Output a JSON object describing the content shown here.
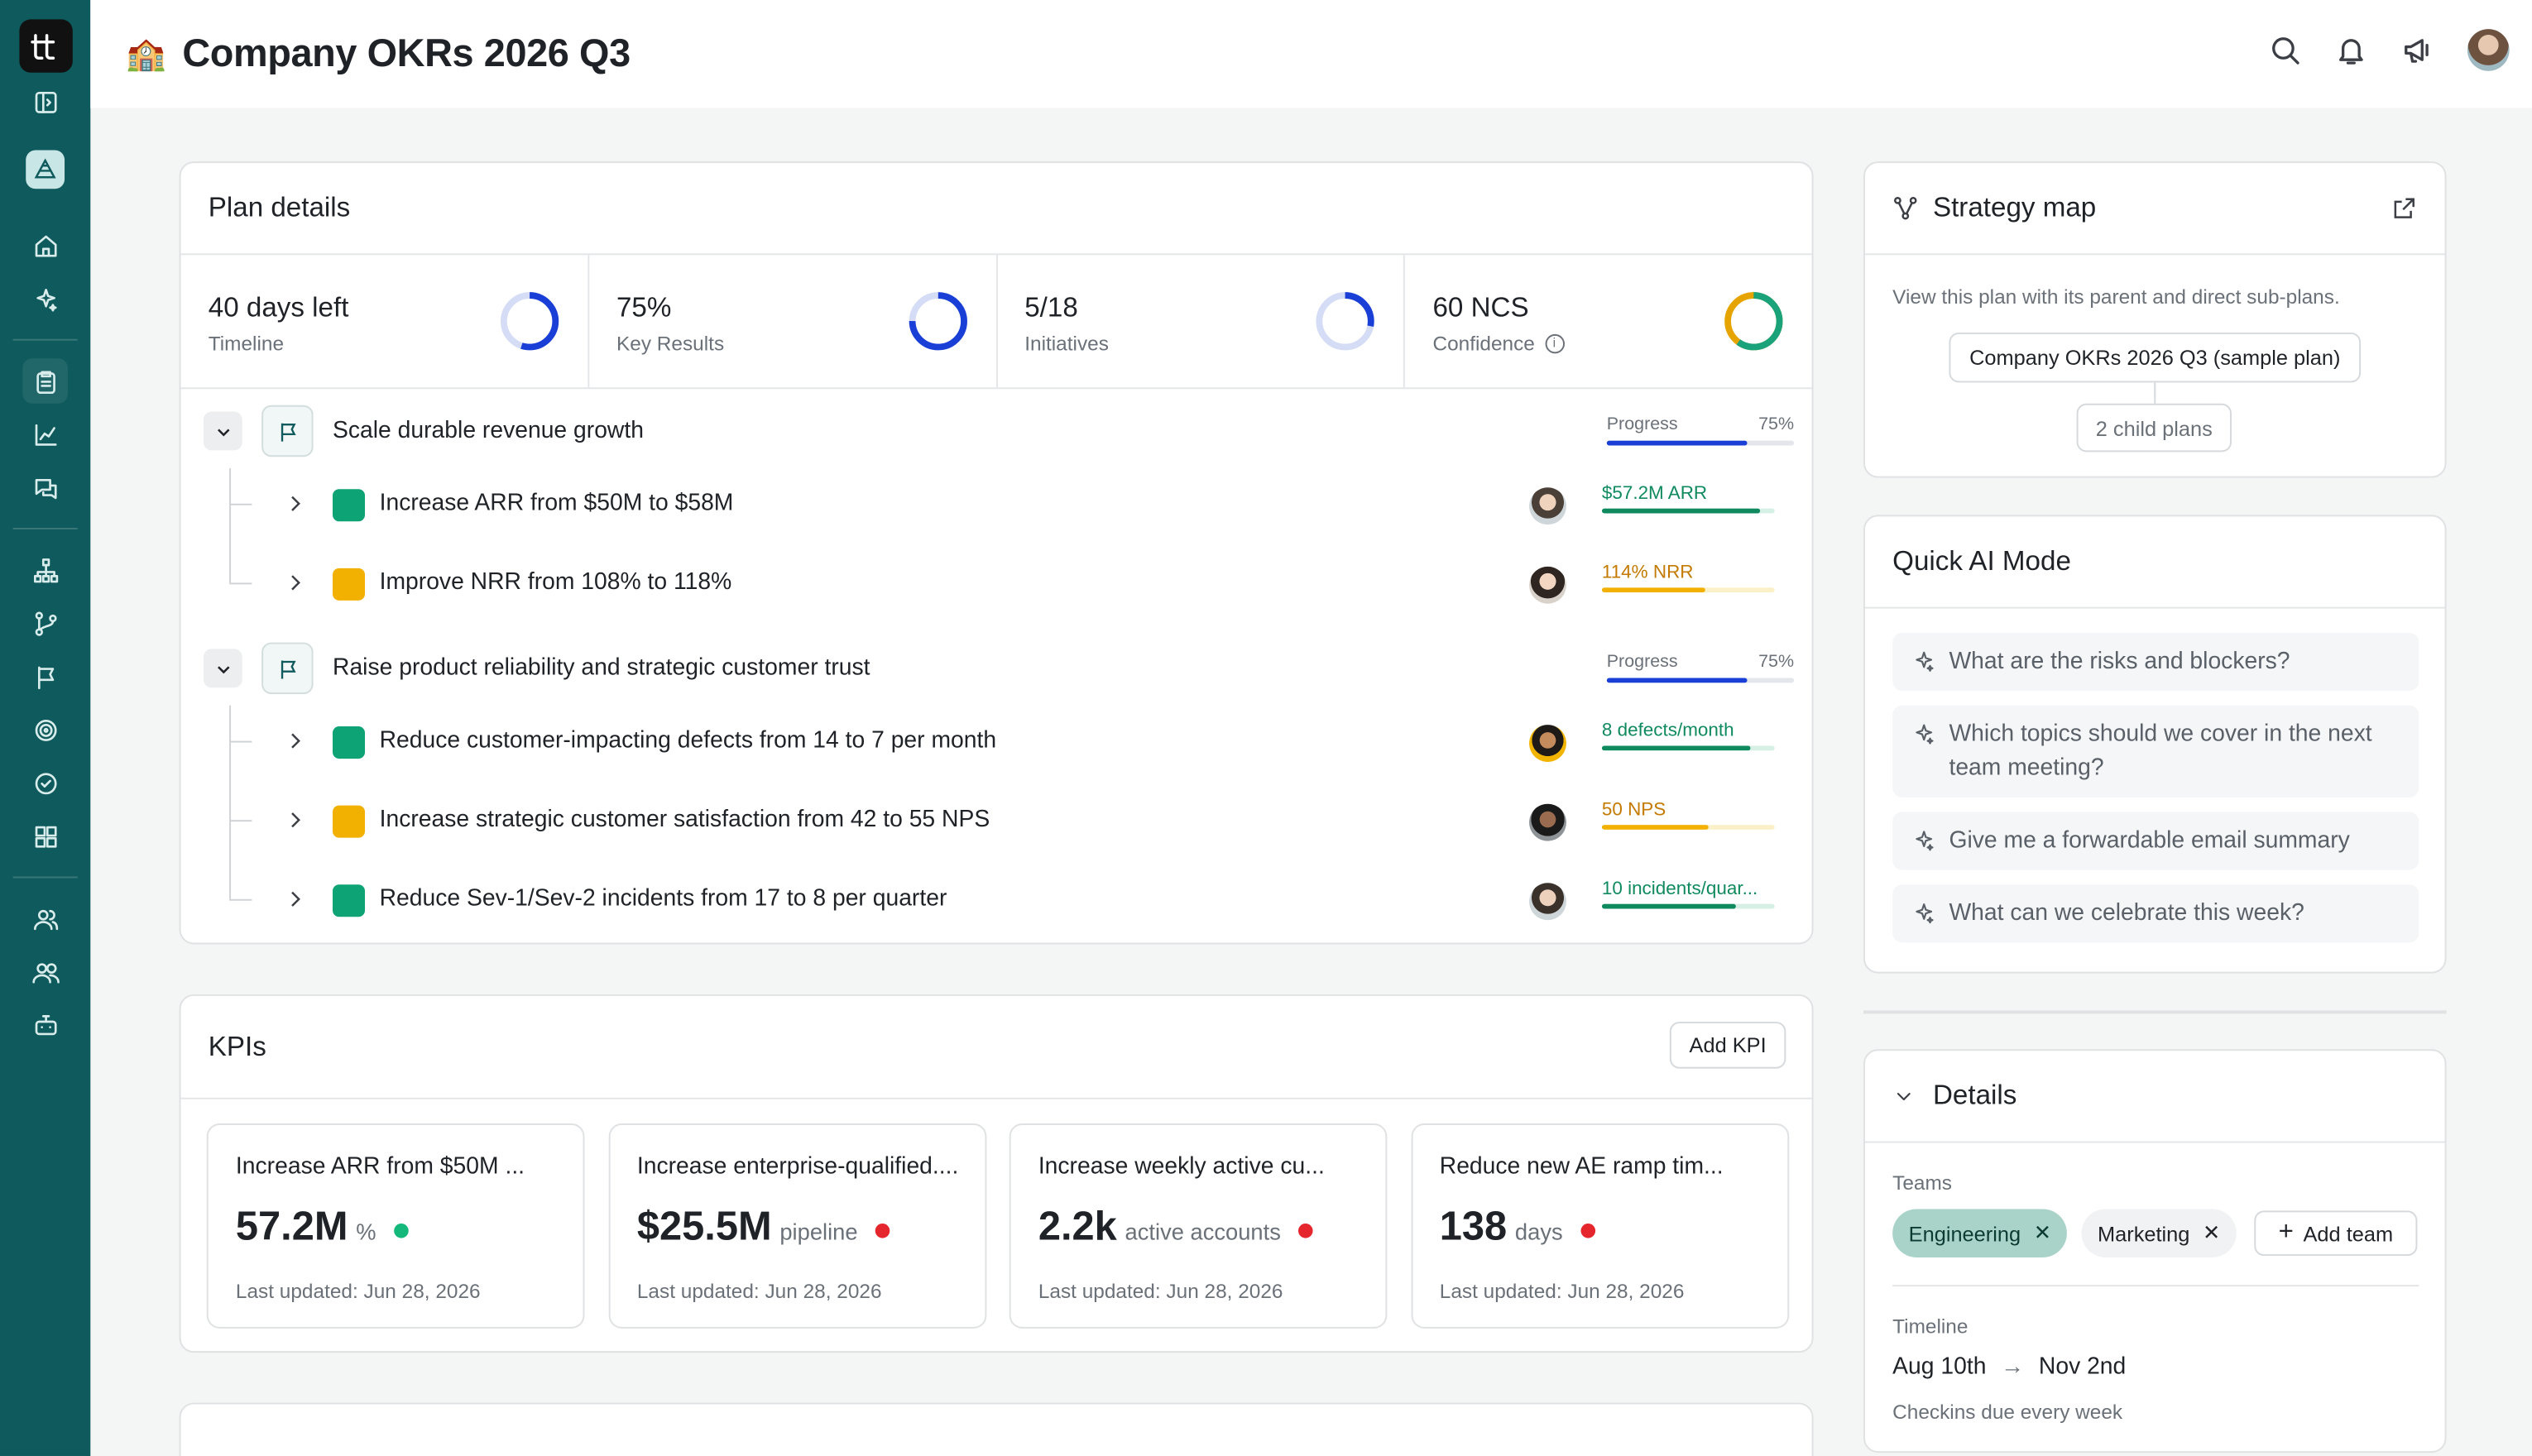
{
  "app": {
    "page_title": "Company OKRs 2026 Q3",
    "page_emoji": "🏫"
  },
  "sidebar": {
    "logo_text": "tt",
    "items": [
      {
        "name": "panel-toggle-icon"
      },
      {
        "name": "okr-pyramid-icon"
      },
      {
        "name": "home-icon"
      },
      {
        "name": "sparkle-icon"
      },
      {
        "name": "clipboard-icon"
      },
      {
        "name": "chart-icon"
      },
      {
        "name": "chat-icon"
      },
      {
        "name": "hierarchy-icon"
      },
      {
        "name": "branch-icon"
      },
      {
        "name": "flag-icon"
      },
      {
        "name": "target-icon"
      },
      {
        "name": "check-circle-icon"
      },
      {
        "name": "grid-icon"
      },
      {
        "name": "users-icon"
      },
      {
        "name": "people-icon"
      },
      {
        "name": "bot-icon"
      }
    ]
  },
  "plan": {
    "title": "Plan details",
    "stats": [
      {
        "value": "40 days left",
        "label": "Timeline",
        "fraction": 0.55,
        "color": "#1a3fd6",
        "track": "#d5dcf6"
      },
      {
        "value": "75%",
        "label": "Key Results",
        "fraction": 0.75,
        "color": "#1a3fd6",
        "track": "#d5dcf6"
      },
      {
        "value": "5/18",
        "label": "Initiatives",
        "fraction": 0.28,
        "color": "#1a3fd6",
        "track": "#d5dcf6"
      },
      {
        "value": "60 NCS",
        "label": "Confidence",
        "fraction": 1.0,
        "color": "#1aa37a",
        "track": "#e6a400"
      }
    ],
    "objectives": [
      {
        "title": "Scale durable revenue growth",
        "progress_label": "Progress",
        "progress_value": "75%",
        "progress": 0.75,
        "key_results": [
          {
            "title": "Increase ARR from $50M to $58M",
            "status_color": "#0ea374",
            "metric": "$57.2M ARR",
            "metric_color": "#0f8a5f",
            "progress": 0.92,
            "bar_color": "#0f8a5f",
            "track": "#d7f0e5"
          },
          {
            "title": "Improve NRR from 108% to 118%",
            "status_color": "#f2b000",
            "metric": "114% NRR",
            "metric_color": "#c47a00",
            "progress": 0.6,
            "bar_color": "#f2b000",
            "track": "#fbf1c9"
          }
        ]
      },
      {
        "title": "Raise product reliability and strategic customer trust",
        "progress_label": "Progress",
        "progress_value": "75%",
        "progress": 0.75,
        "key_results": [
          {
            "title": "Reduce customer-impacting defects from 14 to 7 per month",
            "status_color": "#0ea374",
            "metric": "8 defects/month",
            "metric_color": "#0f8a5f",
            "progress": 0.86,
            "bar_color": "#0f8a5f",
            "track": "#d7f0e5"
          },
          {
            "title": "Increase strategic customer satisfaction from 42 to 55 NPS",
            "status_color": "#f2b000",
            "metric": "50 NPS",
            "metric_color": "#c47a00",
            "progress": 0.62,
            "bar_color": "#f2b000",
            "track": "#fbf1c9"
          },
          {
            "title": "Reduce Sev-1/Sev-2 incidents from 17 to 8 per quarter",
            "status_color": "#0ea374",
            "metric": "10 incidents/quar...",
            "metric_color": "#0f8a5f",
            "progress": 0.78,
            "bar_color": "#0f8a5f",
            "track": "#d7f0e5"
          }
        ]
      }
    ]
  },
  "kpis": {
    "title": "KPIs",
    "add_label": "Add KPI",
    "items": [
      {
        "title": "Increase ARR from $50M ...",
        "value": "57.2M",
        "unit": "%",
        "dot": "#14b87a",
        "updated": "Last updated: Jun 28, 2026"
      },
      {
        "title": "Increase enterprise-qualified....",
        "value": "$25.5M",
        "unit": "pipeline",
        "dot": "#e5262c",
        "updated": "Last updated: Jun 28, 2026"
      },
      {
        "title": "Increase weekly active cu...",
        "value": "2.2k",
        "unit": "active accounts",
        "dot": "#e5262c",
        "updated": "Last updated: Jun 28, 2026"
      },
      {
        "title": "Reduce new AE ramp tim...",
        "value": "138",
        "unit": "days",
        "dot": "#e5262c",
        "updated": "Last updated: Jun 28, 2026"
      }
    ]
  },
  "strategy": {
    "title": "Strategy map",
    "description": "View this plan with its parent and direct sub-plans.",
    "parent_node": "Company OKRs 2026 Q3 (sample plan)",
    "child_node": "2 child plans"
  },
  "quick_ai": {
    "title": "Quick AI Mode",
    "prompts": [
      "What are the risks and blockers?",
      "Which topics should we cover in the next team meeting?",
      "Give me a forwardable email summary",
      "What can we celebrate this week?"
    ]
  },
  "details": {
    "title": "Details",
    "teams_label": "Teams",
    "teams": [
      "Engineering",
      "Marketing"
    ],
    "add_team_label": "Add team",
    "timeline_label": "Timeline",
    "start": "Aug 10th",
    "end": "Nov 2nd",
    "checkins": "Checkins due every week"
  }
}
